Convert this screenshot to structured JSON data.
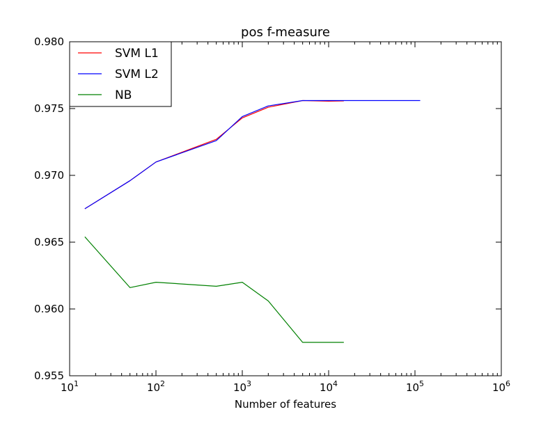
{
  "chart_data": {
    "type": "line",
    "title": "pos f-measure",
    "xlabel": "Number of features",
    "ylabel": "",
    "xscale": "log",
    "xlim": [
      10,
      1000000
    ],
    "ylim": [
      0.955,
      0.98
    ],
    "grid": false,
    "legend_position": "top-left",
    "x_ticks": [
      {
        "value": 10,
        "base": "10",
        "exp": "1"
      },
      {
        "value": 100,
        "base": "10",
        "exp": "2"
      },
      {
        "value": 1000,
        "base": "10",
        "exp": "3"
      },
      {
        "value": 10000,
        "base": "10",
        "exp": "4"
      },
      {
        "value": 100000,
        "base": "10",
        "exp": "5"
      },
      {
        "value": 1000000,
        "base": "10",
        "exp": "6"
      }
    ],
    "y_ticks": [
      {
        "value": 0.955,
        "label": "0.955"
      },
      {
        "value": 0.96,
        "label": "0.960"
      },
      {
        "value": 0.965,
        "label": "0.965"
      },
      {
        "value": 0.97,
        "label": "0.970"
      },
      {
        "value": 0.975,
        "label": "0.975"
      },
      {
        "value": 0.98,
        "label": "0.980"
      }
    ],
    "series": [
      {
        "name": "SVM L1",
        "color": "#ff0000",
        "points": [
          [
            15,
            0.9675
          ],
          [
            50,
            0.9696
          ],
          [
            100,
            0.971
          ],
          [
            500,
            0.9727
          ],
          [
            1000,
            0.9743
          ],
          [
            2000,
            0.9751
          ],
          [
            5000,
            0.9756
          ],
          [
            10000,
            0.97555
          ],
          [
            15000,
            0.97557
          ]
        ]
      },
      {
        "name": "SVM L2",
        "color": "#0000ff",
        "points": [
          [
            15,
            0.9675
          ],
          [
            50,
            0.9696
          ],
          [
            100,
            0.971
          ],
          [
            500,
            0.9726
          ],
          [
            1000,
            0.9744
          ],
          [
            2000,
            0.9752
          ],
          [
            5000,
            0.9756
          ],
          [
            10000,
            0.9756
          ],
          [
            15000,
            0.9756
          ],
          [
            115000,
            0.9756
          ]
        ]
      },
      {
        "name": "NB",
        "color": "#008000",
        "points": [
          [
            15,
            0.9654
          ],
          [
            50,
            0.9616
          ],
          [
            100,
            0.962
          ],
          [
            500,
            0.9617
          ],
          [
            1000,
            0.962
          ],
          [
            2000,
            0.9606
          ],
          [
            5000,
            0.9575
          ],
          [
            10000,
            0.9575
          ],
          [
            15000,
            0.9575
          ]
        ]
      }
    ]
  }
}
